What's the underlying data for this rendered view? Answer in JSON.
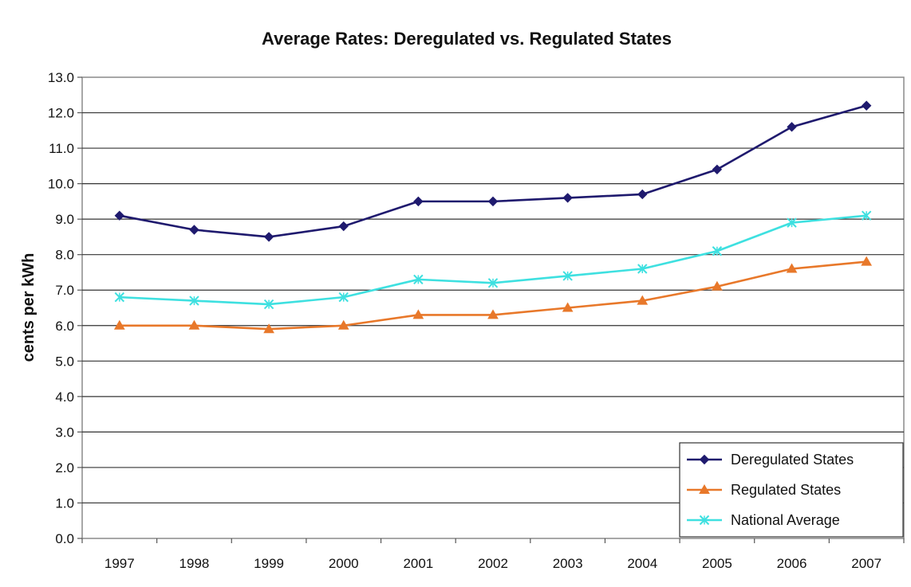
{
  "chart_data": {
    "type": "line",
    "title": "Average Rates: Deregulated vs. Regulated States",
    "xlabel": "",
    "ylabel": "cents per kWh",
    "categories": [
      "1997",
      "1998",
      "1999",
      "2000",
      "2001",
      "2002",
      "2003",
      "2004",
      "2005",
      "2006",
      "2007"
    ],
    "ylim": [
      0,
      13
    ],
    "ytick_step": 1,
    "ytick_labels": [
      "0.0",
      "1.0",
      "2.0",
      "3.0",
      "4.0",
      "5.0",
      "6.0",
      "7.0",
      "8.0",
      "9.0",
      "10.0",
      "11.0",
      "12.0",
      "13.0"
    ],
    "grid": true,
    "legend_position": "bottom-right",
    "series": [
      {
        "name": "Deregulated States",
        "color": "#1f1a6e",
        "marker": "diamond",
        "values": [
          9.1,
          8.7,
          8.5,
          8.8,
          9.5,
          9.5,
          9.6,
          9.7,
          10.4,
          11.6,
          12.2
        ]
      },
      {
        "name": "Regulated States",
        "color": "#e8782a",
        "marker": "triangle",
        "values": [
          6.0,
          6.0,
          5.9,
          6.0,
          6.3,
          6.3,
          6.5,
          6.7,
          7.1,
          7.6,
          7.8
        ]
      },
      {
        "name": "National Average",
        "color": "#3ee0e0",
        "marker": "x",
        "values": [
          6.8,
          6.7,
          6.6,
          6.8,
          7.3,
          7.2,
          7.4,
          7.6,
          8.1,
          8.9,
          9.1
        ]
      }
    ]
  }
}
